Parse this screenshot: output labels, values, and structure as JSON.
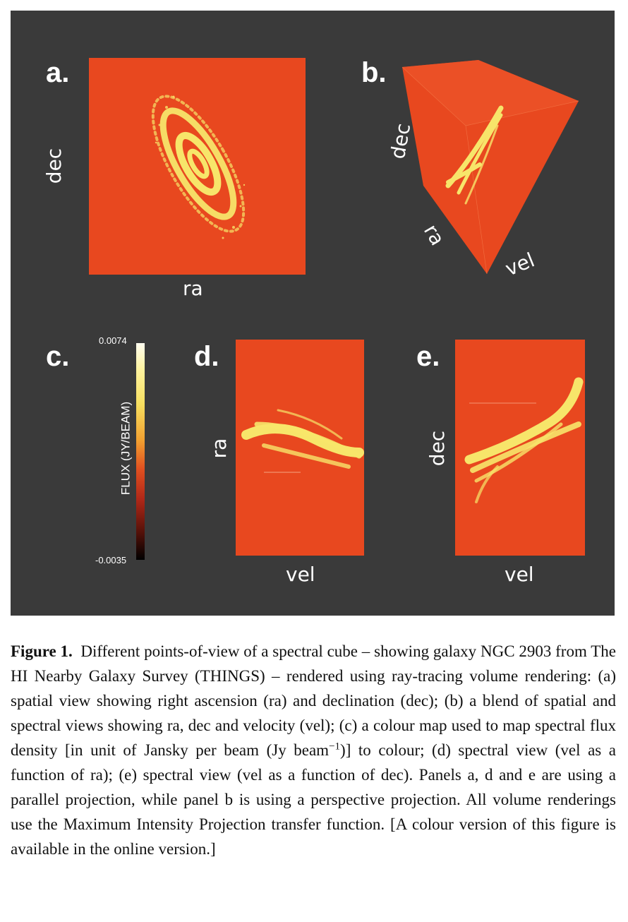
{
  "panels": {
    "a": {
      "label": "a.",
      "xlabel": "ra",
      "ylabel": "dec"
    },
    "b": {
      "label": "b.",
      "axis_dec": "dec",
      "axis_ra": "ra",
      "axis_vel": "vel"
    },
    "c": {
      "label": "c.",
      "cbar_max": "0.0074",
      "cbar_min": "-0.0035",
      "cbar_title": "FLUX (JY/BEAM)"
    },
    "d": {
      "label": "d.",
      "xlabel": "vel",
      "ylabel": "ra"
    },
    "e": {
      "label": "e.",
      "xlabel": "vel",
      "ylabel": "dec"
    }
  },
  "colors": {
    "background": "#3a3a3a",
    "cube_fill": "#e8481f",
    "emission": "#f7e56a"
  },
  "caption": {
    "title": "Figure 1.",
    "body": "Different points-of-view of a spectral cube – showing galaxy NGC 2903 from The HI Nearby Galaxy Survey (THINGS) – rendered using ray-tracing volume rendering: (a) spatial view showing right ascension (ra) and declination (dec); (b) a blend of spatial and spectral views showing ra, dec and velocity (vel); (c) a colour map used to map spectral flux density [in unit of Jansky per beam (Jy beam",
    "superscript": "−1",
    "body_end": ")] to colour; (d) spectral view (vel as a function of ra); (e) spectral view (vel as a function of dec). Panels a, d and e are using a parallel projection, while panel b is using a perspective projection. All volume renderings use the Maximum Intensity Projection transfer function. [A colour version of this figure is available in the online version.]"
  }
}
